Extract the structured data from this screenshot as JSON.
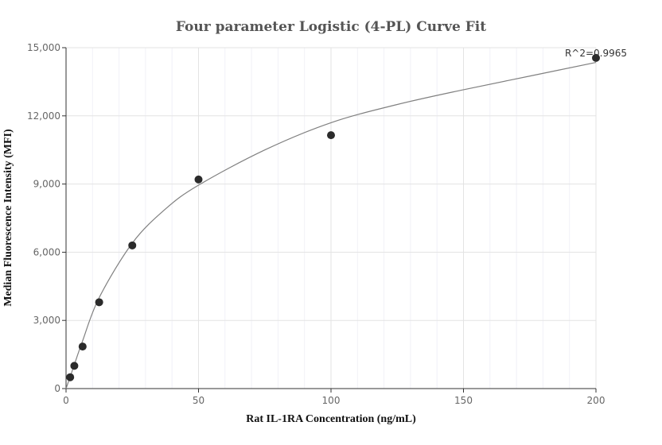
{
  "chart_data": {
    "type": "scatter",
    "title": "Four parameter Logistic (4-PL) Curve Fit",
    "xlabel": "Rat IL-1RA Concentration (ng/mL)",
    "ylabel": "Median Fluorescence Intensity (MFI)",
    "xlim": [
      0,
      200
    ],
    "ylim": [
      0,
      15000
    ],
    "x_ticks": [
      0,
      50,
      100,
      150,
      200
    ],
    "y_ticks": [
      0,
      3000,
      6000,
      9000,
      12000,
      15000
    ],
    "x_tick_labels": [
      "0",
      "50",
      "100",
      "150",
      "200"
    ],
    "y_tick_labels": [
      "0",
      "3,000",
      "6,000",
      "9,000",
      "12,000",
      "15,000"
    ],
    "grid": true,
    "annotation": "R^2=0.9965",
    "points": {
      "x": [
        1.5625,
        3.125,
        6.25,
        12.5,
        25,
        50,
        100,
        200
      ],
      "y": [
        500,
        1000,
        1850,
        3800,
        6300,
        9200,
        11150,
        14550
      ]
    },
    "fit_curve": {
      "x": [
        0,
        1.5625,
        3.125,
        6.25,
        12.5,
        25,
        37.5,
        50,
        75,
        100,
        125,
        150,
        175,
        200
      ],
      "y": [
        0,
        520,
        1050,
        2100,
        4000,
        6400,
        7900,
        8950,
        10500,
        11700,
        12500,
        13150,
        13750,
        14350
      ]
    },
    "colors": {
      "points": "#2b2b2b",
      "curve": "#808080",
      "title": "#555555"
    }
  }
}
